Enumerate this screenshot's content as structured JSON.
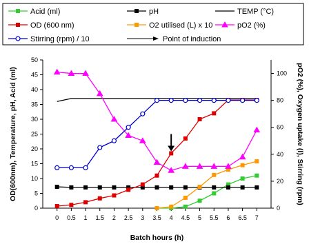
{
  "chart_data": {
    "type": "line",
    "x": [
      0,
      0.5,
      1,
      1.5,
      2,
      2.5,
      3,
      3.5,
      4,
      4.5,
      5,
      5.5,
      6,
      6.5,
      7
    ],
    "xlabel": "Batch hours (h)",
    "ylabel_left": "OD(600nm), Temperature, pH, Acid (ml)",
    "ylabel_right": "pO2 (%), Oxygen uptake (l), Stirring (rpm)",
    "ylim_left": [
      0,
      50
    ],
    "ylim_right": [
      0,
      110
    ],
    "left_ticks": [
      0,
      5,
      10,
      15,
      20,
      25,
      30,
      35,
      40,
      45,
      50
    ],
    "right_ticks": [
      0,
      20,
      40,
      60,
      80,
      100
    ],
    "x_ticks": [
      "0",
      "0.5",
      "1",
      "1.5",
      "2",
      "2.5",
      "3",
      "3.5",
      "4",
      "4.5",
      "5",
      "5.5",
      "6",
      "6.5",
      "7"
    ],
    "grid": false,
    "legend_position": "top",
    "series": [
      {
        "name": "Acid (ml)",
        "axis": "left",
        "color": "#33cc33",
        "marker": "square",
        "x": [
          3.5,
          4,
          4.5,
          5,
          5.5,
          6,
          6.5,
          7
        ],
        "values": [
          0,
          0,
          0.5,
          2.5,
          5,
          8,
          10,
          11
        ]
      },
      {
        "name": "pH",
        "axis": "left",
        "color": "#000000",
        "marker": "square",
        "x": [
          0,
          0.5,
          1,
          1.5,
          2,
          2.5,
          3,
          3.5,
          4,
          4.5,
          5,
          5.5,
          6,
          6.5,
          7
        ],
        "values": [
          7.2,
          7,
          7,
          7,
          7,
          7,
          7,
          7,
          7,
          7,
          7,
          7,
          7,
          7,
          7
        ]
      },
      {
        "name": "TEMP (°C)",
        "axis": "left",
        "color": "#000000",
        "marker": "none",
        "x": [
          0,
          0.5,
          1,
          1.5,
          2,
          2.5,
          3,
          3.5,
          4,
          4.5,
          5,
          5.5,
          6,
          6.5,
          7
        ],
        "values": [
          36,
          37,
          37,
          37,
          37,
          37,
          37,
          37,
          37,
          37,
          37,
          37,
          37,
          37,
          37
        ]
      },
      {
        "name": "OD (600 nm)",
        "axis": "left",
        "color": "#dd0000",
        "marker": "square",
        "x": [
          0,
          0.5,
          1,
          1.5,
          2,
          2.5,
          3,
          3.5,
          4,
          4.5,
          5,
          5.5,
          6,
          6.5,
          7
        ],
        "values": [
          0.7,
          1.1,
          2,
          3.3,
          4.3,
          6.2,
          8,
          11,
          18.5,
          23.5,
          30,
          32,
          36.5,
          36.5,
          36.5
        ]
      },
      {
        "name": "O2 utilised (L) x 10",
        "axis": "left",
        "color": "#ff9900",
        "marker": "square",
        "x": [
          3.5,
          4,
          4.5,
          5,
          5.5,
          6,
          6.5,
          7
        ],
        "values": [
          0,
          0.5,
          3.5,
          7.2,
          11.2,
          13,
          14.5,
          15.8
        ]
      },
      {
        "name": "pO2 (%)",
        "axis": "right",
        "color": "#ff00ff",
        "marker": "triangle",
        "x": [
          0,
          0.5,
          1,
          1.5,
          2,
          2.5,
          3,
          3.5,
          4,
          4.5,
          5,
          5.5,
          6,
          6.5,
          7
        ],
        "values": [
          101,
          100,
          100,
          85,
          66,
          54,
          50,
          34,
          28,
          31,
          31,
          31,
          31,
          38,
          58
        ]
      },
      {
        "name": "Stirring (rpm) / 10",
        "axis": "right",
        "color": "#0000cc",
        "marker": "circle",
        "x": [
          0,
          0.5,
          1,
          1.5,
          2,
          2.5,
          3,
          3.5,
          4,
          4.5,
          5,
          5.5,
          6,
          6.5,
          7
        ],
        "values": [
          30,
          30,
          30,
          45,
          50,
          60,
          70,
          80,
          80,
          80,
          80,
          80,
          80,
          80,
          80
        ]
      }
    ],
    "annotations": [
      {
        "type": "arrow",
        "label": "Point of induction",
        "x": 4,
        "y": 18.5
      }
    ],
    "legend": [
      {
        "name": "Acid (ml)",
        "color": "#33cc33",
        "marker": "square",
        "line": "solid"
      },
      {
        "name": "pH",
        "color": "#000000",
        "marker": "square",
        "line": "solid"
      },
      {
        "name": "TEMP (°C)",
        "color": "#000000",
        "marker": "none",
        "line": "solid"
      },
      {
        "name": "OD (600 nm)",
        "color": "#dd0000",
        "marker": "square",
        "line": "solid"
      },
      {
        "name": "O2 utilised (L) x 10",
        "color": "#ff9900",
        "marker": "square",
        "line": "solid"
      },
      {
        "name": "pO2 (%)",
        "color": "#ff00ff",
        "marker": "triangle",
        "line": "solid"
      },
      {
        "name": "Stirring (rpm) / 10",
        "color": "#0000cc",
        "marker": "circle",
        "line": "solid"
      },
      {
        "name": "Point of induction",
        "color": "#000000",
        "marker": "arrow",
        "line": "none"
      }
    ]
  }
}
